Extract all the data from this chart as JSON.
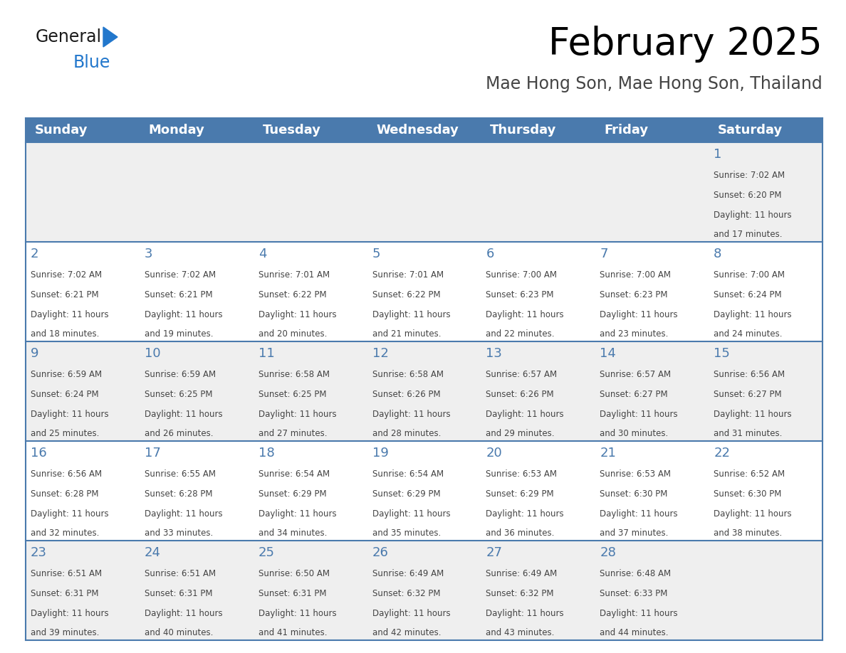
{
  "title": "February 2025",
  "subtitle": "Mae Hong Son, Mae Hong Son, Thailand",
  "days_of_week": [
    "Sunday",
    "Monday",
    "Tuesday",
    "Wednesday",
    "Thursday",
    "Friday",
    "Saturday"
  ],
  "header_bg": "#4a7aad",
  "header_text": "#ffffff",
  "cell_bg_light": "#efefef",
  "cell_bg_white": "#ffffff",
  "line_color": "#4a7aad",
  "title_color": "#000000",
  "subtitle_color": "#444444",
  "day_number_color": "#4a7aad",
  "cell_text_color": "#444444",
  "logo_general_color": "#1a1a1a",
  "logo_blue_color": "#2277cc",
  "calendar_data": [
    {
      "day": 1,
      "col": 6,
      "row": 0,
      "sunrise": "7:02 AM",
      "sunset": "6:20 PM",
      "dh": 11,
      "dm": 17
    },
    {
      "day": 2,
      "col": 0,
      "row": 1,
      "sunrise": "7:02 AM",
      "sunset": "6:21 PM",
      "dh": 11,
      "dm": 18
    },
    {
      "day": 3,
      "col": 1,
      "row": 1,
      "sunrise": "7:02 AM",
      "sunset": "6:21 PM",
      "dh": 11,
      "dm": 19
    },
    {
      "day": 4,
      "col": 2,
      "row": 1,
      "sunrise": "7:01 AM",
      "sunset": "6:22 PM",
      "dh": 11,
      "dm": 20
    },
    {
      "day": 5,
      "col": 3,
      "row": 1,
      "sunrise": "7:01 AM",
      "sunset": "6:22 PM",
      "dh": 11,
      "dm": 21
    },
    {
      "day": 6,
      "col": 4,
      "row": 1,
      "sunrise": "7:00 AM",
      "sunset": "6:23 PM",
      "dh": 11,
      "dm": 22
    },
    {
      "day": 7,
      "col": 5,
      "row": 1,
      "sunrise": "7:00 AM",
      "sunset": "6:23 PM",
      "dh": 11,
      "dm": 23
    },
    {
      "day": 8,
      "col": 6,
      "row": 1,
      "sunrise": "7:00 AM",
      "sunset": "6:24 PM",
      "dh": 11,
      "dm": 24
    },
    {
      "day": 9,
      "col": 0,
      "row": 2,
      "sunrise": "6:59 AM",
      "sunset": "6:24 PM",
      "dh": 11,
      "dm": 25
    },
    {
      "day": 10,
      "col": 1,
      "row": 2,
      "sunrise": "6:59 AM",
      "sunset": "6:25 PM",
      "dh": 11,
      "dm": 26
    },
    {
      "day": 11,
      "col": 2,
      "row": 2,
      "sunrise": "6:58 AM",
      "sunset": "6:25 PM",
      "dh": 11,
      "dm": 27
    },
    {
      "day": 12,
      "col": 3,
      "row": 2,
      "sunrise": "6:58 AM",
      "sunset": "6:26 PM",
      "dh": 11,
      "dm": 28
    },
    {
      "day": 13,
      "col": 4,
      "row": 2,
      "sunrise": "6:57 AM",
      "sunset": "6:26 PM",
      "dh": 11,
      "dm": 29
    },
    {
      "day": 14,
      "col": 5,
      "row": 2,
      "sunrise": "6:57 AM",
      "sunset": "6:27 PM",
      "dh": 11,
      "dm": 30
    },
    {
      "day": 15,
      "col": 6,
      "row": 2,
      "sunrise": "6:56 AM",
      "sunset": "6:27 PM",
      "dh": 11,
      "dm": 31
    },
    {
      "day": 16,
      "col": 0,
      "row": 3,
      "sunrise": "6:56 AM",
      "sunset": "6:28 PM",
      "dh": 11,
      "dm": 32
    },
    {
      "day": 17,
      "col": 1,
      "row": 3,
      "sunrise": "6:55 AM",
      "sunset": "6:28 PM",
      "dh": 11,
      "dm": 33
    },
    {
      "day": 18,
      "col": 2,
      "row": 3,
      "sunrise": "6:54 AM",
      "sunset": "6:29 PM",
      "dh": 11,
      "dm": 34
    },
    {
      "day": 19,
      "col": 3,
      "row": 3,
      "sunrise": "6:54 AM",
      "sunset": "6:29 PM",
      "dh": 11,
      "dm": 35
    },
    {
      "day": 20,
      "col": 4,
      "row": 3,
      "sunrise": "6:53 AM",
      "sunset": "6:29 PM",
      "dh": 11,
      "dm": 36
    },
    {
      "day": 21,
      "col": 5,
      "row": 3,
      "sunrise": "6:53 AM",
      "sunset": "6:30 PM",
      "dh": 11,
      "dm": 37
    },
    {
      "day": 22,
      "col": 6,
      "row": 3,
      "sunrise": "6:52 AM",
      "sunset": "6:30 PM",
      "dh": 11,
      "dm": 38
    },
    {
      "day": 23,
      "col": 0,
      "row": 4,
      "sunrise": "6:51 AM",
      "sunset": "6:31 PM",
      "dh": 11,
      "dm": 39
    },
    {
      "day": 24,
      "col": 1,
      "row": 4,
      "sunrise": "6:51 AM",
      "sunset": "6:31 PM",
      "dh": 11,
      "dm": 40
    },
    {
      "day": 25,
      "col": 2,
      "row": 4,
      "sunrise": "6:50 AM",
      "sunset": "6:31 PM",
      "dh": 11,
      "dm": 41
    },
    {
      "day": 26,
      "col": 3,
      "row": 4,
      "sunrise": "6:49 AM",
      "sunset": "6:32 PM",
      "dh": 11,
      "dm": 42
    },
    {
      "day": 27,
      "col": 4,
      "row": 4,
      "sunrise": "6:49 AM",
      "sunset": "6:32 PM",
      "dh": 11,
      "dm": 43
    },
    {
      "day": 28,
      "col": 5,
      "row": 4,
      "sunrise": "6:48 AM",
      "sunset": "6:33 PM",
      "dh": 11,
      "dm": 44
    }
  ]
}
